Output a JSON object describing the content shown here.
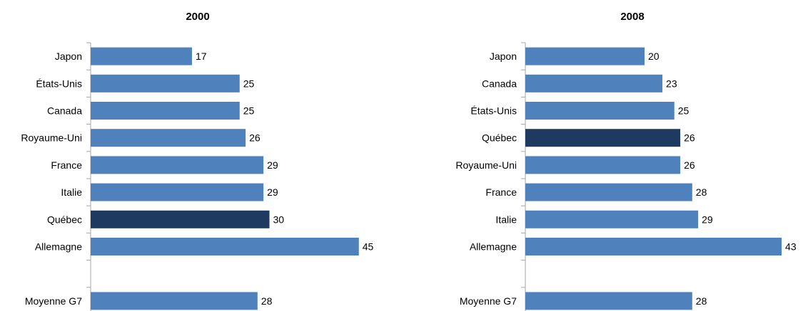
{
  "colors": {
    "bar": "#4f81bd",
    "highlight": "#1f3a60",
    "axis": "#a6a6a6"
  },
  "chart_data": [
    {
      "type": "bar",
      "orientation": "horizontal",
      "title": "2000",
      "categories": [
        "Japon",
        "États-Unis",
        "Canada",
        "Royaume-Uni",
        "France",
        "Italie",
        "Québec",
        "Allemagne",
        "",
        "Moyenne G7"
      ],
      "values": [
        17,
        25,
        25,
        26,
        29,
        29,
        30,
        45,
        null,
        28
      ],
      "value_labels": [
        "17",
        "25",
        "25",
        "26",
        "29",
        "29",
        "30",
        "45",
        "",
        "28"
      ],
      "highlight": "Québec",
      "xlim": [
        0,
        55
      ],
      "grid": false,
      "legend": "none"
    },
    {
      "type": "bar",
      "orientation": "horizontal",
      "title": "2008",
      "categories": [
        "Japon",
        "Canada",
        "États-Unis",
        "Québec",
        "Royaume-Uni",
        "France",
        "Italie",
        "Allemagne",
        "",
        "Moyenne G7"
      ],
      "values": [
        20,
        23,
        25,
        26,
        26,
        28,
        29,
        43,
        null,
        28
      ],
      "value_labels": [
        "20",
        "23",
        "25",
        "26",
        "26",
        "28",
        "29",
        "43",
        "",
        "28"
      ],
      "highlight": "Québec",
      "xlim": [
        0,
        55
      ],
      "grid": false,
      "legend": "none"
    }
  ]
}
